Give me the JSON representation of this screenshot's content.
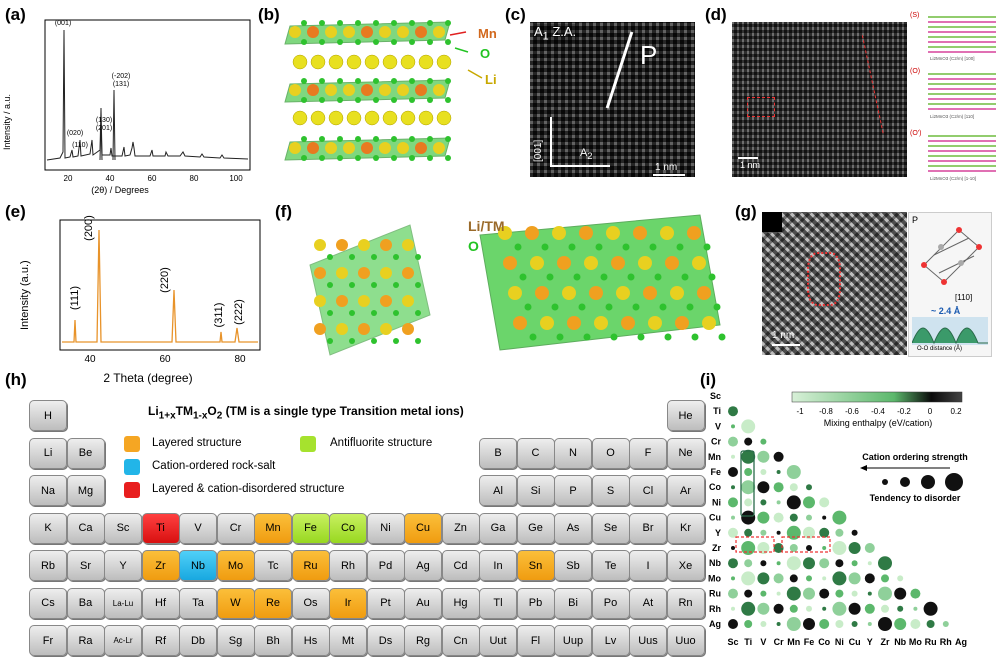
{
  "panels": {
    "a": "(a)",
    "b": "(b)",
    "c": "(c)",
    "d": "(d)",
    "e": "(e)",
    "f": "(f)",
    "g": "(g)",
    "h": "(h)",
    "i": "(i)"
  },
  "panel_a": {
    "ylabel": "Intensity / a.u.",
    "xlabel": "(2θ) / Degrees",
    "peaks": [
      "(001)",
      "(020)",
      "(110)",
      "(130)",
      "(201)",
      "(-202)",
      "(131)"
    ],
    "xticks": [
      "20",
      "40",
      "60",
      "80",
      "100"
    ]
  },
  "panel_b": {
    "mn": "Mn",
    "o": "O",
    "li": "Li"
  },
  "panel_c": {
    "zone": "A",
    "zone_sub": "1",
    "za": "Z.A.",
    "p": "P",
    "axis1": "[001]",
    "axis2": "A",
    "axis2_sub": "2",
    "scale": "1 nm"
  },
  "panel_d": {
    "scale": "1 nm",
    "side": [
      "(S)",
      "(O)",
      "(O')"
    ],
    "side_captions": [
      "Li2MnO3 (C2/m) [100]",
      "Li2MnO3 (C2/m) [110]",
      "Li2MnO3 (C2/m) [1-10]"
    ]
  },
  "panel_e": {
    "ylabel": "Intensity (a.u.)",
    "xlabel": "2 Theta (degree)",
    "peaks": [
      "(111)",
      "(200)",
      "(220)",
      "(311)",
      "(222)"
    ],
    "xticks": [
      "40",
      "60",
      "80"
    ]
  },
  "panel_f": {
    "litm": "Li/TM",
    "o": "O"
  },
  "panel_g": {
    "p": "P",
    "dir": "[110]",
    "dist": "~ 2.4 Å",
    "xlabel": "O-O distance (Å)",
    "scale": "1 nm"
  },
  "panel_h": {
    "title_pre": "Li",
    "title_sub1": "1+x",
    "title_mid": "TM",
    "title_sub2": "1-x",
    "title_mid2": "O",
    "title_sub3": "2",
    "title_post": " (TM is a single type Transition metal ions)",
    "legend": [
      "Layered structure",
      "Antifluorite structure",
      "Cation-ordered rock-salt",
      "Layered & cation-disordered structure"
    ],
    "legend_colors": [
      "#f5a623",
      "#a6e22e",
      "#22b5e8",
      "#e81e1e"
    ]
  },
  "periodic": [
    [
      "H",
      0,
      0,
      ""
    ],
    [
      "He",
      17,
      0,
      ""
    ],
    [
      "Li",
      0,
      1,
      ""
    ],
    [
      "Be",
      1,
      1,
      ""
    ],
    [
      "B",
      12,
      1,
      ""
    ],
    [
      "C",
      13,
      1,
      ""
    ],
    [
      "N",
      14,
      1,
      ""
    ],
    [
      "O",
      15,
      1,
      ""
    ],
    [
      "F",
      16,
      1,
      ""
    ],
    [
      "Ne",
      17,
      1,
      ""
    ],
    [
      "Na",
      0,
      2,
      ""
    ],
    [
      "Mg",
      1,
      2,
      ""
    ],
    [
      "Al",
      12,
      2,
      ""
    ],
    [
      "Si",
      13,
      2,
      ""
    ],
    [
      "P",
      14,
      2,
      ""
    ],
    [
      "S",
      15,
      2,
      ""
    ],
    [
      "Cl",
      16,
      2,
      ""
    ],
    [
      "Ar",
      17,
      2,
      ""
    ],
    [
      "K",
      0,
      3,
      ""
    ],
    [
      "Ca",
      1,
      3,
      ""
    ],
    [
      "Sc",
      2,
      3,
      ""
    ],
    [
      "Ti",
      3,
      3,
      "red"
    ],
    [
      "V",
      4,
      3,
      ""
    ],
    [
      "Cr",
      5,
      3,
      ""
    ],
    [
      "Mn",
      6,
      3,
      "orange"
    ],
    [
      "Fe",
      7,
      3,
      "green"
    ],
    [
      "Co",
      8,
      3,
      "green"
    ],
    [
      "Ni",
      9,
      3,
      ""
    ],
    [
      "Cu",
      10,
      3,
      "orange"
    ],
    [
      "Zn",
      11,
      3,
      ""
    ],
    [
      "Ga",
      12,
      3,
      ""
    ],
    [
      "Ge",
      13,
      3,
      ""
    ],
    [
      "As",
      14,
      3,
      ""
    ],
    [
      "Se",
      15,
      3,
      ""
    ],
    [
      "Br",
      16,
      3,
      ""
    ],
    [
      "Kr",
      17,
      3,
      ""
    ],
    [
      "Rb",
      0,
      4,
      ""
    ],
    [
      "Sr",
      1,
      4,
      ""
    ],
    [
      "Y",
      2,
      4,
      ""
    ],
    [
      "Zr",
      3,
      4,
      "orange"
    ],
    [
      "Nb",
      4,
      4,
      "blue"
    ],
    [
      "Mo",
      5,
      4,
      "orange"
    ],
    [
      "Tc",
      6,
      4,
      ""
    ],
    [
      "Ru",
      7,
      4,
      "orange"
    ],
    [
      "Rh",
      8,
      4,
      ""
    ],
    [
      "Pd",
      9,
      4,
      ""
    ],
    [
      "Ag",
      10,
      4,
      ""
    ],
    [
      "Cd",
      11,
      4,
      ""
    ],
    [
      "In",
      12,
      4,
      ""
    ],
    [
      "Sn",
      13,
      4,
      "orange"
    ],
    [
      "Sb",
      14,
      4,
      ""
    ],
    [
      "Te",
      15,
      4,
      ""
    ],
    [
      "I",
      16,
      4,
      ""
    ],
    [
      "Xe",
      17,
      4,
      ""
    ],
    [
      "Cs",
      0,
      5,
      ""
    ],
    [
      "Ba",
      1,
      5,
      ""
    ],
    [
      "La-Lu",
      2,
      5,
      ""
    ],
    [
      "Hf",
      3,
      5,
      ""
    ],
    [
      "Ta",
      4,
      5,
      ""
    ],
    [
      "W",
      5,
      5,
      "orange"
    ],
    [
      "Re",
      6,
      5,
      "orange"
    ],
    [
      "Os",
      7,
      5,
      ""
    ],
    [
      "Ir",
      8,
      5,
      "orange"
    ],
    [
      "Pt",
      9,
      5,
      ""
    ],
    [
      "Au",
      10,
      5,
      ""
    ],
    [
      "Hg",
      11,
      5,
      ""
    ],
    [
      "Tl",
      12,
      5,
      ""
    ],
    [
      "Pb",
      13,
      5,
      ""
    ],
    [
      "Bi",
      14,
      5,
      ""
    ],
    [
      "Po",
      15,
      5,
      ""
    ],
    [
      "At",
      16,
      5,
      ""
    ],
    [
      "Rn",
      17,
      5,
      ""
    ],
    [
      "Fr",
      0,
      6,
      ""
    ],
    [
      "Ra",
      1,
      6,
      ""
    ],
    [
      "Ac-Lr",
      2,
      6,
      ""
    ],
    [
      "Rf",
      3,
      6,
      ""
    ],
    [
      "Db",
      4,
      6,
      ""
    ],
    [
      "Sg",
      5,
      6,
      ""
    ],
    [
      "Bh",
      6,
      6,
      ""
    ],
    [
      "Hs",
      7,
      6,
      ""
    ],
    [
      "Mt",
      8,
      6,
      ""
    ],
    [
      "Ds",
      9,
      6,
      ""
    ],
    [
      "Rg",
      10,
      6,
      ""
    ],
    [
      "Cn",
      11,
      6,
      ""
    ],
    [
      "Uut",
      12,
      6,
      ""
    ],
    [
      "Fl",
      13,
      6,
      ""
    ],
    [
      "Uup",
      14,
      6,
      ""
    ],
    [
      "Lv",
      15,
      6,
      ""
    ],
    [
      "Uus",
      16,
      6,
      ""
    ],
    [
      "Uuo",
      17,
      6,
      ""
    ]
  ],
  "panel_i": {
    "rows": [
      "Sc",
      "Ti",
      "V",
      "Cr",
      "Mn",
      "Fe",
      "Co",
      "Ni",
      "Cu",
      "Y",
      "Zr",
      "Nb",
      "Mo",
      "Ru",
      "Rh",
      "Ag"
    ],
    "cols": [
      "Sc",
      "Ti",
      "V",
      "Cr",
      "Mn",
      "Fe",
      "Co",
      "Ni",
      "Cu",
      "Y",
      "Zr",
      "Nb",
      "Mo",
      "Ru",
      "Rh",
      "Ag"
    ],
    "colorbar_ticks": [
      "-1",
      "-0.8",
      "-0.6",
      "-0.4",
      "-0.2",
      "0",
      "0.2"
    ],
    "colorbar_label": "Mixing enthalpy (eV/cation)",
    "ordering": "Cation ordering strength",
    "disorder": "Tendency to disorder"
  }
}
